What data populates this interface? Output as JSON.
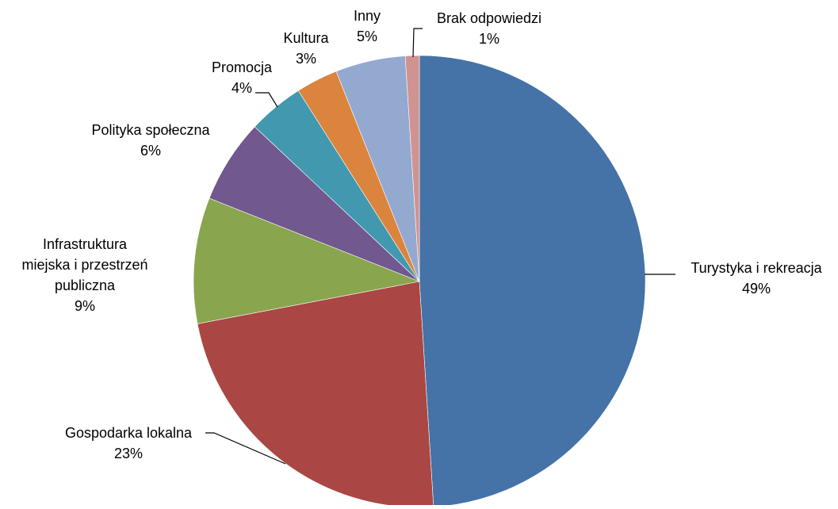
{
  "chart_data": {
    "type": "pie",
    "title": "",
    "slices": [
      {
        "label": "Turystyka i rekreacja",
        "value": 49,
        "value_label": "49%",
        "color": "#4572A7"
      },
      {
        "label": "Gospodarka lokalna",
        "value": 23,
        "value_label": "23%",
        "color": "#AA4643"
      },
      {
        "label": "Infrastruktura miejska i przestrzeń publiczna",
        "value": 9,
        "value_label": "9%",
        "color": "#89A54E"
      },
      {
        "label": "Polityka społeczna",
        "value": 6,
        "value_label": "6%",
        "color": "#71588F"
      },
      {
        "label": "Promocja",
        "value": 4,
        "value_label": "4%",
        "color": "#4198AF"
      },
      {
        "label": "Kultura",
        "value": 3,
        "value_label": "3%",
        "color": "#DB843D"
      },
      {
        "label": "Inny",
        "value": 5,
        "value_label": "5%",
        "color": "#93A9CF"
      },
      {
        "label": "Brak odpowiedzi",
        "value": 1,
        "value_label": "1%",
        "color": "#D19392"
      }
    ],
    "start_angle": "12 o'clock",
    "direction": "clockwise",
    "legend": "none",
    "data_labels": "outside with leader lines"
  }
}
